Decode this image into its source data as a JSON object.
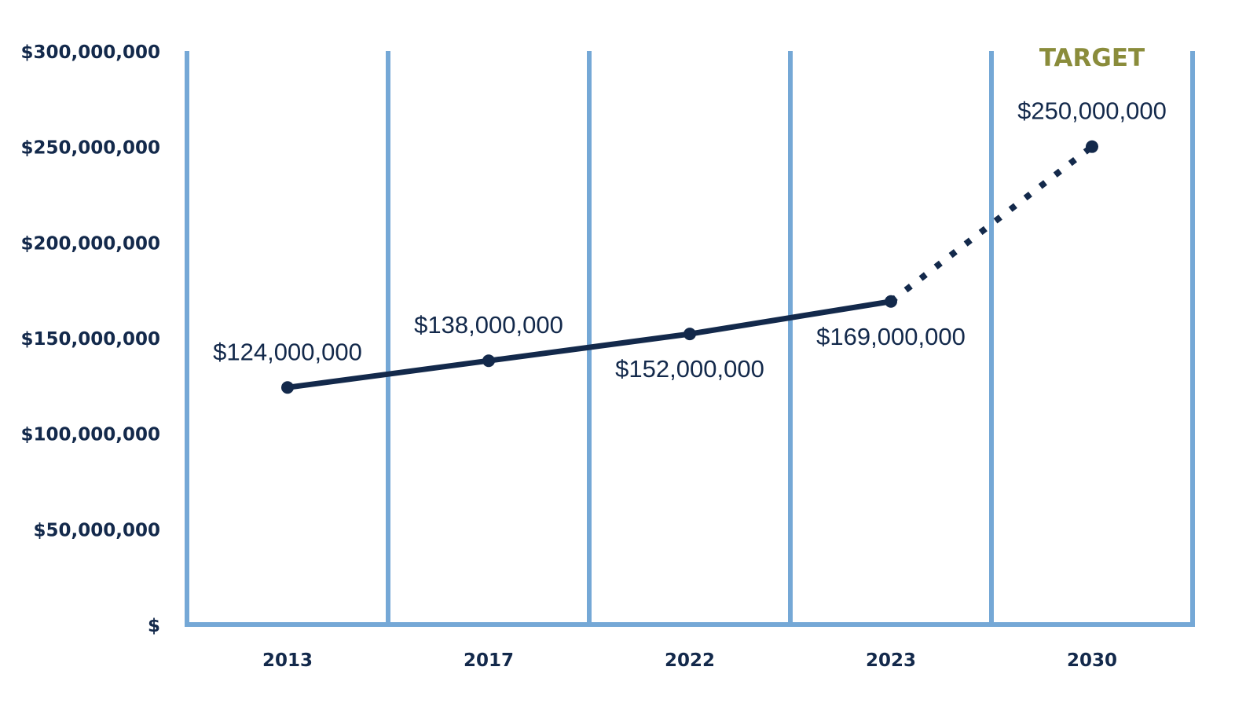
{
  "chart_data": {
    "type": "line",
    "categories": [
      "2013",
      "2017",
      "2022",
      "2023",
      "2030"
    ],
    "series": [
      {
        "values": [
          124000000,
          138000000,
          152000000,
          169000000,
          250000000
        ],
        "data_labels": [
          "$124,000,000",
          "$138,000,000",
          "$152,000,000",
          "$169,000,000",
          "$250,000,000"
        ]
      }
    ],
    "projected_from_index": 3,
    "annotation": "TARGET",
    "annotation_category": "2030",
    "ylim": [
      0,
      300000000
    ],
    "yticks": [
      0,
      50000000,
      100000000,
      150000000,
      200000000,
      250000000,
      300000000
    ],
    "ytick_labels": [
      "$",
      "$50,000,000",
      "$100,000,000",
      "$150,000,000",
      "$200,000,000",
      "$250,000,000",
      "$300,000,000"
    ],
    "grid": "vertical",
    "colors": {
      "line": "#13294b",
      "grid": "#75a8d6",
      "axis_text": "#13294b",
      "annotation": "#8a8c3b"
    }
  }
}
